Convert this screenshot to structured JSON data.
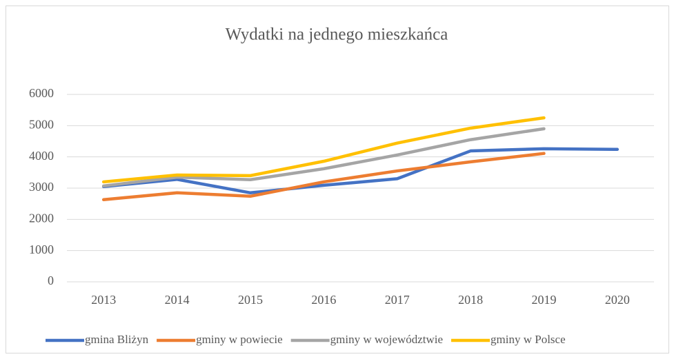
{
  "chart_data": {
    "type": "line",
    "title": "Wydatki na jednego mieszkańca",
    "categories": [
      "2013",
      "2014",
      "2015",
      "2016",
      "2017",
      "2018",
      "2019",
      "2020"
    ],
    "series": [
      {
        "name": "gmina Bliżyn",
        "color": "#4472c4",
        "values": [
          3050,
          3280,
          2850,
          3090,
          3300,
          4190,
          4260,
          4240
        ]
      },
      {
        "name": "gminy w powiecie",
        "color": "#ed7d31",
        "values": [
          2630,
          2850,
          2740,
          3200,
          3550,
          3840,
          4110,
          null
        ]
      },
      {
        "name": "gminy w województwie",
        "color": "#a5a5a5",
        "values": [
          3070,
          3350,
          3270,
          3620,
          4060,
          4550,
          4900,
          null
        ]
      },
      {
        "name": "gminy w Polsce",
        "color": "#ffc000",
        "values": [
          3200,
          3420,
          3400,
          3860,
          4440,
          4920,
          5250,
          null
        ]
      }
    ],
    "ylim": [
      0,
      6000
    ],
    "yticks": [
      0,
      1000,
      2000,
      3000,
      4000,
      5000,
      6000
    ],
    "grid": true,
    "legend": "bottom"
  }
}
